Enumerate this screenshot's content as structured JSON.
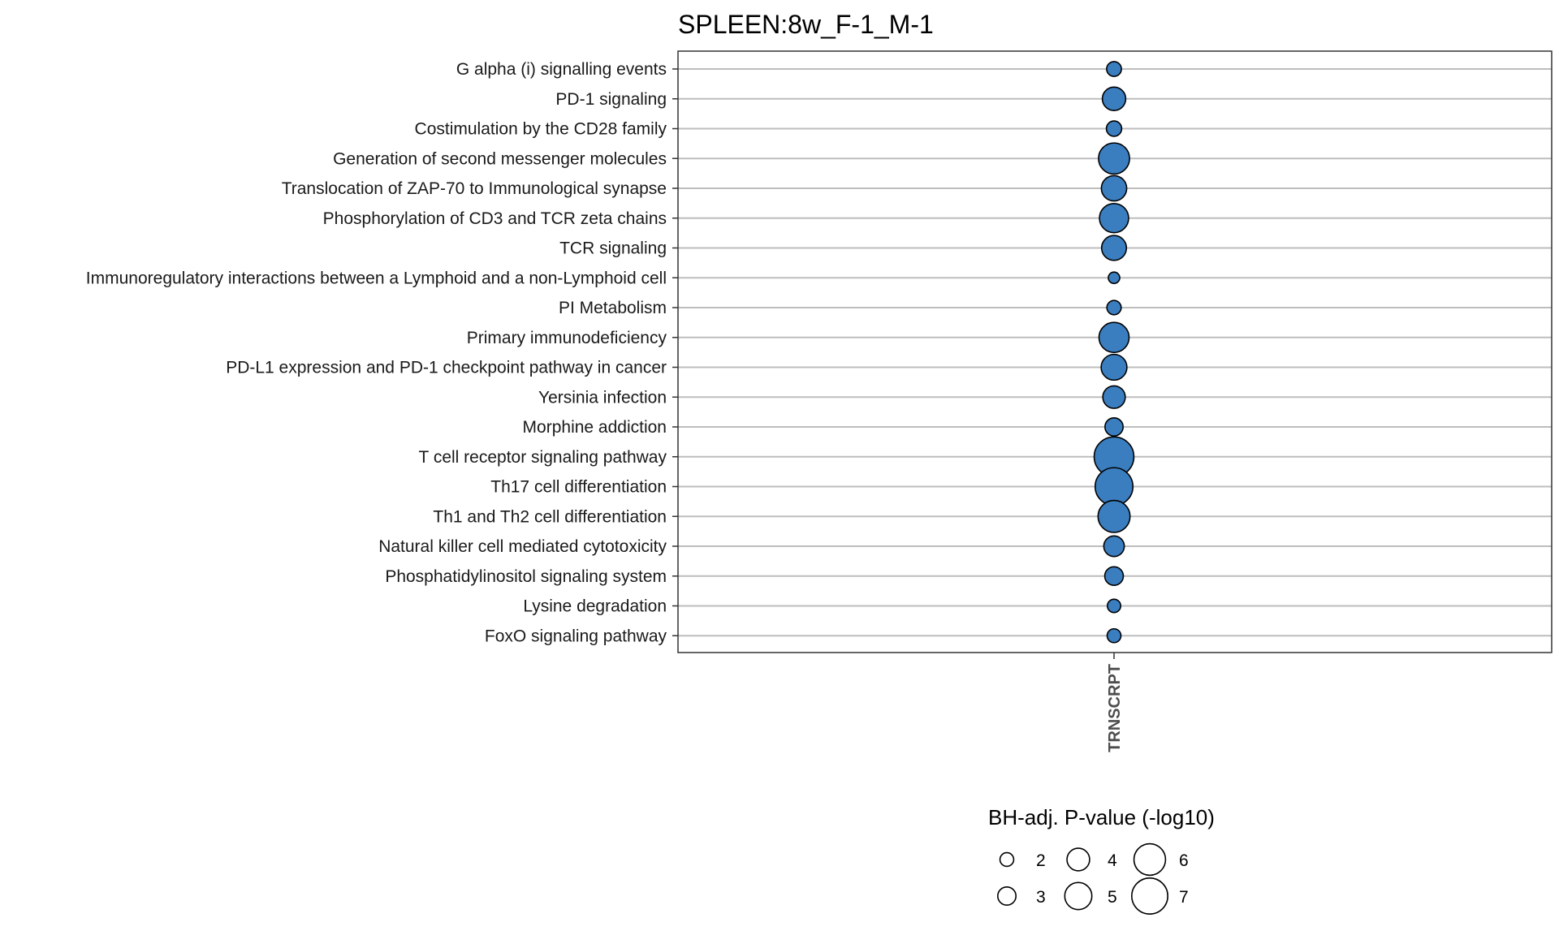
{
  "chart_data": {
    "type": "scatter",
    "title": "SPLEEN:8w_F-1_M-1",
    "xlabel": "",
    "ylabel": "",
    "x_categories": [
      "TRNSCRPT"
    ],
    "y_categories": [
      "G alpha (i) signalling events",
      "PD-1 signaling",
      "Costimulation by the CD28 family",
      "Generation of second messenger molecules",
      "Translocation of ZAP-70 to Immunological synapse",
      "Phosphorylation of CD3 and TCR zeta chains",
      "TCR signaling",
      "Immunoregulatory interactions between a Lymphoid and a non-Lymphoid cell",
      "PI Metabolism",
      "Primary immunodeficiency",
      "PD-L1 expression and PD-1 checkpoint pathway in cancer",
      "Yersinia infection",
      "Morphine addiction",
      "T cell receptor signaling pathway",
      "Th17 cell differentiation",
      "Th1 and Th2 cell differentiation",
      "Natural killer cell mediated cytotoxicity",
      "Phosphatidylinositol signaling system",
      "Lysine degradation",
      "FoxO signaling pathway"
    ],
    "values": [
      2.0,
      3.8,
      2.1,
      5.4,
      4.2,
      5.0,
      4.1,
      1.3,
      1.9,
      5.2,
      4.3,
      3.6,
      2.7,
      7.2,
      6.8,
      5.6,
      3.2,
      2.8,
      1.7,
      1.8
    ],
    "point_color": "#3a7ec0",
    "legend": {
      "title": "BH-adj. P-value (-log10)",
      "entries": [
        "2",
        "3",
        "4",
        "5",
        "6",
        "7"
      ],
      "entry_values": [
        2,
        3,
        4,
        5,
        6,
        7
      ],
      "placement": "bottom"
    },
    "grid": "horizontal"
  }
}
